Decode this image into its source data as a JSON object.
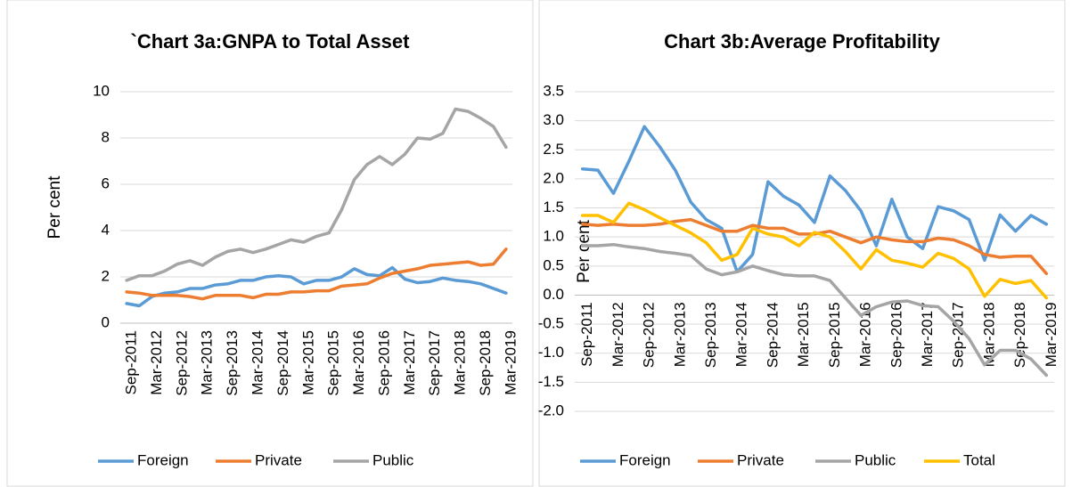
{
  "chart_data": [
    {
      "type": "line",
      "title": "`Chart 3a:GNPA to Total Asset",
      "y_label": "Per cent",
      "categories": [
        "Sep-2011",
        null,
        "Mar-2012",
        null,
        "Sep-2012",
        null,
        "Mar-2013",
        null,
        "Sep-2013",
        null,
        "Mar-2014",
        null,
        "Sep-2014",
        null,
        "Mar-2015",
        null,
        "Sep-2015",
        null,
        "Mar-2016",
        null,
        "Sep-2016",
        null,
        "Mar-2017",
        null,
        "Sep-2017",
        null,
        "Mar-2018",
        null,
        "Sep-2018",
        null,
        "Mar-2019"
      ],
      "series": [
        {
          "name": "Foreign",
          "color": "#5b9bd5",
          "values": [
            0.85,
            0.75,
            1.15,
            1.3,
            1.35,
            1.5,
            1.5,
            1.65,
            1.7,
            1.85,
            1.85,
            2.0,
            2.05,
            2.0,
            1.7,
            1.85,
            1.85,
            2.0,
            2.35,
            2.1,
            2.05,
            2.4,
            1.9,
            1.75,
            1.8,
            1.95,
            1.85,
            1.8,
            1.7,
            1.5,
            1.3
          ]
        },
        {
          "name": "Private",
          "color": "#ed7d31",
          "values": [
            1.35,
            1.3,
            1.2,
            1.2,
            1.2,
            1.15,
            1.05,
            1.2,
            1.2,
            1.2,
            1.1,
            1.25,
            1.25,
            1.35,
            1.35,
            1.4,
            1.4,
            1.6,
            1.65,
            1.7,
            1.95,
            2.15,
            2.25,
            2.35,
            2.5,
            2.55,
            2.6,
            2.65,
            2.5,
            2.55,
            3.2
          ]
        },
        {
          "name": "Public",
          "color": "#a5a5a5",
          "values": [
            1.85,
            2.05,
            2.05,
            2.25,
            2.55,
            2.7,
            2.5,
            2.85,
            3.1,
            3.2,
            3.05,
            3.2,
            3.4,
            3.6,
            3.5,
            3.75,
            3.9,
            4.9,
            6.2,
            6.85,
            7.2,
            6.85,
            7.3,
            8.0,
            7.95,
            8.2,
            9.25,
            9.15,
            8.85,
            8.5,
            7.6
          ]
        }
      ],
      "ylim": [
        0,
        10
      ],
      "yticks": [
        0,
        2,
        4,
        6,
        8,
        10
      ],
      "grid": true,
      "legend": "bottom"
    },
    {
      "type": "line",
      "title": "Chart 3b:Average Profitability",
      "y_label": "Per cent",
      "categories": [
        "Sep-2011",
        null,
        "Mar-2012",
        null,
        "Sep-2012",
        null,
        "Mar-2013",
        null,
        "Sep-2013",
        null,
        "Mar-2014",
        null,
        "Sep-2014",
        null,
        "Mar-2015",
        null,
        "Sep-2015",
        null,
        "Mar-2016",
        null,
        "Sep-2016",
        null,
        "Mar-2017",
        null,
        "Sep-2017",
        null,
        "Mar-2018",
        null,
        "Sep-2018",
        null,
        "Mar-2019"
      ],
      "series": [
        {
          "name": "Foreign",
          "color": "#5b9bd5",
          "values": [
            2.17,
            2.15,
            1.75,
            2.3,
            2.9,
            2.55,
            2.15,
            1.6,
            1.3,
            1.15,
            0.4,
            0.7,
            1.95,
            1.7,
            1.55,
            1.25,
            2.05,
            1.8,
            1.45,
            0.85,
            1.65,
            1.0,
            0.8,
            1.52,
            1.45,
            1.3,
            0.6,
            1.38,
            1.1,
            1.37,
            1.22
          ]
        },
        {
          "name": "Private",
          "color": "#ed7d31",
          "values": [
            1.22,
            1.2,
            1.22,
            1.2,
            1.2,
            1.22,
            1.27,
            1.3,
            1.2,
            1.1,
            1.1,
            1.2,
            1.15,
            1.15,
            1.05,
            1.05,
            1.1,
            1.0,
            0.9,
            1.0,
            0.95,
            0.92,
            0.92,
            0.98,
            0.95,
            0.85,
            0.7,
            0.65,
            0.67,
            0.67,
            0.37
          ]
        },
        {
          "name": "Public",
          "color": "#a5a5a5",
          "values": [
            0.85,
            0.85,
            0.87,
            0.83,
            0.8,
            0.75,
            0.72,
            0.68,
            0.45,
            0.35,
            0.4,
            0.5,
            0.42,
            0.35,
            0.33,
            0.33,
            0.25,
            -0.05,
            -0.35,
            -0.2,
            -0.12,
            -0.1,
            -0.18,
            -0.2,
            -0.45,
            -0.75,
            -1.2,
            -0.95,
            -0.95,
            -1.1,
            -1.38
          ]
        },
        {
          "name": "Total",
          "color": "#ffc000",
          "values": [
            1.37,
            1.37,
            1.25,
            1.58,
            1.47,
            1.33,
            1.2,
            1.07,
            0.9,
            0.6,
            0.7,
            1.15,
            1.05,
            1.0,
            0.85,
            1.08,
            1.0,
            0.75,
            0.45,
            0.78,
            0.6,
            0.55,
            0.48,
            0.72,
            0.63,
            0.45,
            -0.02,
            0.27,
            0.2,
            0.25,
            -0.05
          ]
        }
      ],
      "ylim": [
        -2,
        3.5
      ],
      "yticks": [
        {
          "value": -2,
          "label": "-2.0"
        },
        {
          "value": -1.5,
          "label": "-1.5"
        },
        {
          "value": -1,
          "label": "-1.0"
        },
        -0.5,
        {
          "value": 0,
          "label": "0.0"
        },
        0.5,
        {
          "value": 1,
          "label": "1.0"
        },
        1.5,
        {
          "value": 2,
          "label": "2.0"
        },
        2.5,
        {
          "value": 3,
          "label": "3.0"
        },
        3.5
      ],
      "grid": true,
      "legend": "bottom"
    }
  ]
}
